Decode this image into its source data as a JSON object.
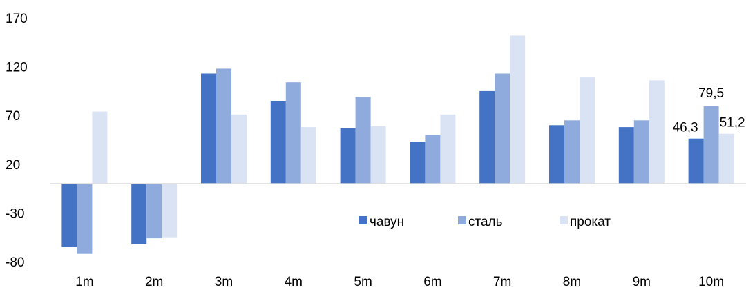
{
  "chart_data": {
    "type": "bar",
    "categories": [
      "1m",
      "2m",
      "3m",
      "4m",
      "5m",
      "6m",
      "7m",
      "8m",
      "9m",
      "10m"
    ],
    "series": [
      {
        "name": "чавун",
        "color": "#4472c4",
        "values": [
          -65,
          -62,
          113,
          85,
          57,
          43,
          95,
          60,
          58,
          46.3
        ]
      },
      {
        "name": "сталь",
        "color": "#8faadc",
        "values": [
          -72,
          -56,
          118,
          104,
          89,
          50,
          113,
          65,
          65,
          79.5
        ]
      },
      {
        "name": "прокат",
        "color": "#dae3f3",
        "values": [
          74,
          -55,
          71,
          58,
          59,
          71,
          152,
          109,
          106,
          51.2
        ]
      }
    ],
    "data_labels": [
      {
        "series": 0,
        "category": 9,
        "text": "46,3"
      },
      {
        "series": 1,
        "category": 9,
        "text": "79,5"
      },
      {
        "series": 2,
        "category": 9,
        "text": "51,2"
      }
    ],
    "yticks": [
      170,
      120,
      70,
      20,
      -30,
      -80
    ],
    "ylim": [
      -80,
      170
    ],
    "grid": false,
    "legend_position": "bottom-center-inside",
    "title": "",
    "xlabel": "",
    "ylabel": ""
  }
}
